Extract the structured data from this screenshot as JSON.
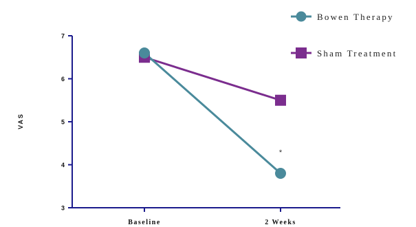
{
  "chart_data": {
    "type": "line",
    "categories": [
      "Baseline",
      "2 Weeks"
    ],
    "series": [
      {
        "name": "Bowen Therapy",
        "values": [
          6.6,
          3.8
        ],
        "color": "#4a8a9b",
        "marker": "circle"
      },
      {
        "name": "Sham Treatment",
        "values": [
          6.5,
          5.5
        ],
        "color": "#7b2d8e",
        "marker": "square"
      }
    ],
    "ylabel": "VAS",
    "xlabel": "",
    "ylim": [
      3,
      7
    ],
    "yticks": [
      3,
      4,
      5,
      6,
      7
    ],
    "grid": false,
    "legend_position": "top-right",
    "annotations": [
      {
        "text": "*",
        "category": "2 Weeks",
        "y": 4.3
      }
    ]
  }
}
